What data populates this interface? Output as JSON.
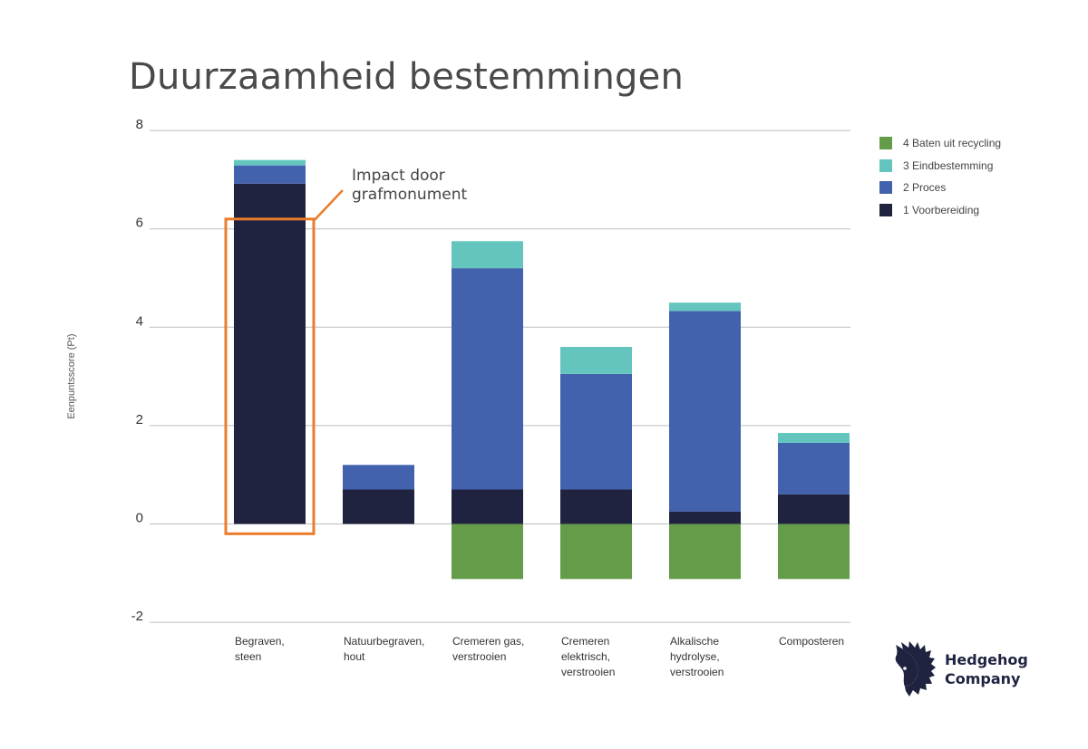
{
  "title": "Duurzaamheid bestemmingen",
  "colors": {
    "series": [
      "#1f2340",
      "#4262ad",
      "#63c5bd",
      "#659c4a"
    ],
    "grid": "#bdbdbd",
    "axis_text": "#333333",
    "highlight": "#ea7c2b"
  },
  "chart_data": {
    "type": "bar",
    "stacked": true,
    "title": "Duurzaamheid bestemmingen",
    "ylabel": "Eenpuntsscore (Pt)",
    "xlabel": "",
    "ylim": [
      -2,
      8
    ],
    "yticks": [
      -2,
      0,
      2,
      4,
      6,
      8
    ],
    "grid": true,
    "legend_position": "right",
    "categories": [
      [
        "Begraven,",
        "steen"
      ],
      [
        "Natuurbegraven,",
        "hout"
      ],
      [
        "Cremeren gas,",
        "verstrooien"
      ],
      [
        "Cremeren",
        "elektrisch,",
        "verstrooien"
      ],
      [
        "Alkalische",
        "hydrolyse,",
        "verstrooien"
      ],
      [
        "Composteren"
      ]
    ],
    "series": [
      {
        "name": "1 Voorbereiding",
        "values": [
          6.92,
          0.7,
          0.7,
          0.7,
          0.25,
          0.6
        ]
      },
      {
        "name": "2 Proces",
        "values": [
          0.37,
          0.5,
          4.5,
          2.35,
          4.08,
          1.05
        ]
      },
      {
        "name": "3 Eindbestemming",
        "values": [
          0.11,
          0.0,
          0.55,
          0.55,
          0.17,
          0.2
        ]
      },
      {
        "name": "4 Baten uit recycling",
        "values": [
          0,
          0,
          -1.12,
          -1.12,
          -1.12,
          -1.12
        ]
      }
    ],
    "annotation": {
      "text": [
        "Impact door",
        "grafmonument"
      ],
      "category_index": 0
    }
  },
  "legend": {
    "items": [
      {
        "label": "4 Baten uit recycling",
        "color": "#659c4a"
      },
      {
        "label": "3 Eindbestemming",
        "color": "#63c5bd"
      },
      {
        "label": "2 Proces",
        "color": "#4262ad"
      },
      {
        "label": "1 Voorbereiding",
        "color": "#1f2340"
      }
    ]
  },
  "logo": {
    "line1": "Hedgehog",
    "line2": "Company",
    "icon": "hedgehog-icon"
  }
}
